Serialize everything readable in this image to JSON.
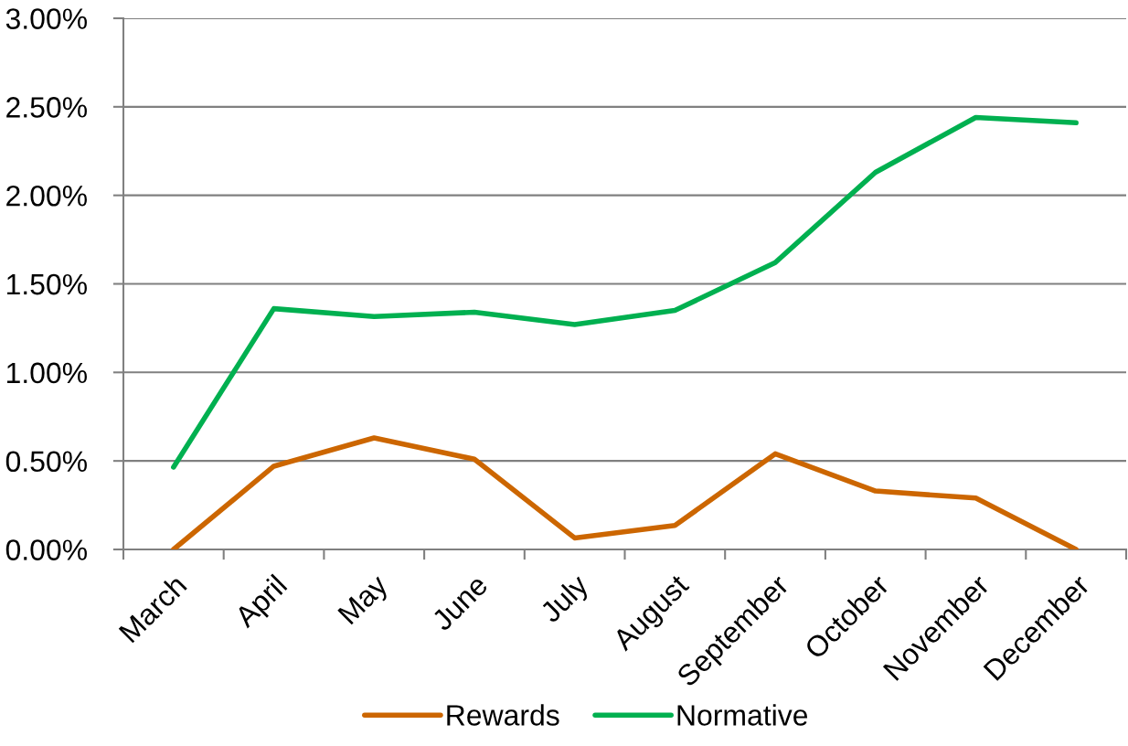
{
  "chart_data": {
    "type": "line",
    "categories": [
      "March",
      "April",
      "May",
      "June",
      "July",
      "August",
      "September",
      "October",
      "November",
      "December"
    ],
    "series": [
      {
        "name": "Rewards",
        "color": "#cc6600",
        "values": [
          0.0,
          0.47,
          0.63,
          0.51,
          0.065,
          0.135,
          0.54,
          0.33,
          0.29,
          0.0
        ]
      },
      {
        "name": "Normative",
        "color": "#00b050",
        "values": [
          0.465,
          1.36,
          1.315,
          1.34,
          1.27,
          1.35,
          1.62,
          2.13,
          2.44,
          2.41
        ]
      }
    ],
    "ylim": [
      0,
      3
    ],
    "yticks": [
      {
        "value": 0,
        "label": "0.00%"
      },
      {
        "value": 0.5,
        "label": "0.50%"
      },
      {
        "value": 1,
        "label": "1.00%"
      },
      {
        "value": 1.5,
        "label": "1.50%"
      },
      {
        "value": 2,
        "label": "2.00%"
      },
      {
        "value": 2.5,
        "label": "2.50%"
      },
      {
        "value": 3,
        "label": "3.00%"
      }
    ],
    "grid": "y",
    "legend": "bottom",
    "line_style": "solid"
  }
}
